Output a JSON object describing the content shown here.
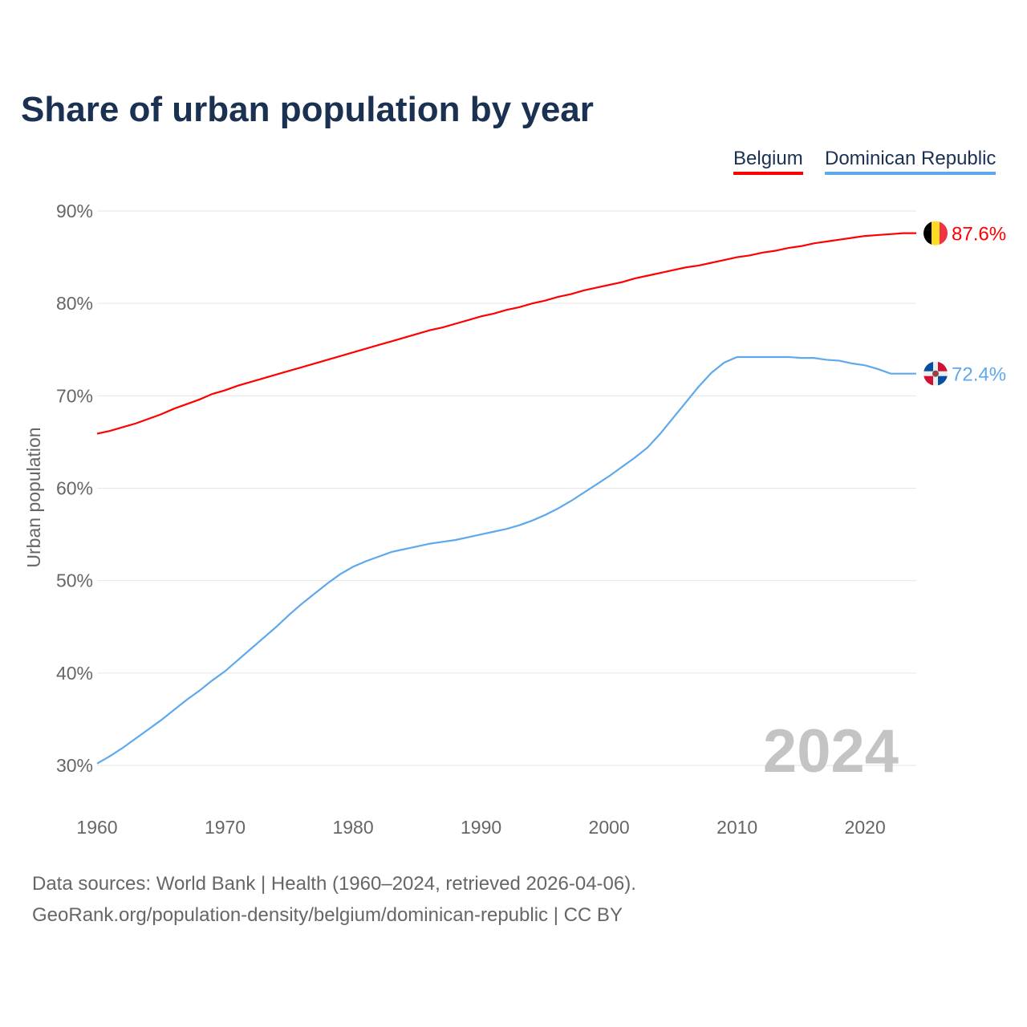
{
  "chart_data": {
    "type": "line",
    "title": "Share of urban population by year",
    "xlabel": "",
    "ylabel": "Urban population",
    "ylim": [
      30,
      90
    ],
    "xlim": [
      1960,
      2024
    ],
    "yticks": [
      "30%",
      "40%",
      "50%",
      "60%",
      "70%",
      "80%",
      "90%"
    ],
    "ytick_values": [
      30,
      40,
      50,
      60,
      70,
      80,
      90
    ],
    "xticks": [
      "1960",
      "1970",
      "1980",
      "1990",
      "2000",
      "2010",
      "2020"
    ],
    "grid": true,
    "legend_placement": "top-right",
    "year_watermark": "2024",
    "x": [
      1960,
      1961,
      1962,
      1963,
      1964,
      1965,
      1966,
      1967,
      1968,
      1969,
      1970,
      1971,
      1972,
      1973,
      1974,
      1975,
      1976,
      1977,
      1978,
      1979,
      1980,
      1981,
      1982,
      1983,
      1984,
      1985,
      1986,
      1987,
      1988,
      1989,
      1990,
      1991,
      1992,
      1993,
      1994,
      1995,
      1996,
      1997,
      1998,
      1999,
      2000,
      2001,
      2002,
      2003,
      2004,
      2005,
      2006,
      2007,
      2008,
      2009,
      2010,
      2011,
      2012,
      2013,
      2014,
      2015,
      2016,
      2017,
      2018,
      2019,
      2020,
      2021,
      2022,
      2023,
      2024
    ],
    "series": [
      {
        "name": "Belgium",
        "color": "#ff0000",
        "end_label": "87.6%",
        "values": [
          65.9,
          66.2,
          66.6,
          67.0,
          67.5,
          68.0,
          68.6,
          69.1,
          69.6,
          70.2,
          70.6,
          71.1,
          71.5,
          71.9,
          72.3,
          72.7,
          73.1,
          73.5,
          73.9,
          74.3,
          74.7,
          75.1,
          75.5,
          75.9,
          76.3,
          76.7,
          77.1,
          77.4,
          77.8,
          78.2,
          78.6,
          78.9,
          79.3,
          79.6,
          80.0,
          80.3,
          80.7,
          81.0,
          81.4,
          81.7,
          82.0,
          82.3,
          82.7,
          83.0,
          83.3,
          83.6,
          83.9,
          84.1,
          84.4,
          84.7,
          85.0,
          85.2,
          85.5,
          85.7,
          86.0,
          86.2,
          86.5,
          86.7,
          86.9,
          87.1,
          87.3,
          87.4,
          87.5,
          87.6,
          87.6
        ]
      },
      {
        "name": "Dominican Republic",
        "color": "#5ea8ec",
        "end_label": "72.4%",
        "values": [
          30.2,
          31.0,
          31.9,
          32.9,
          33.9,
          34.9,
          36.0,
          37.1,
          38.1,
          39.2,
          40.2,
          41.4,
          42.6,
          43.8,
          45.0,
          46.3,
          47.5,
          48.6,
          49.7,
          50.7,
          51.5,
          52.1,
          52.6,
          53.1,
          53.4,
          53.7,
          54.0,
          54.2,
          54.4,
          54.7,
          55.0,
          55.3,
          55.6,
          56.0,
          56.5,
          57.1,
          57.8,
          58.6,
          59.5,
          60.4,
          61.3,
          62.3,
          63.3,
          64.4,
          65.9,
          67.6,
          69.3,
          71.0,
          72.5,
          73.6,
          74.2,
          74.2,
          74.2,
          74.2,
          74.2,
          74.1,
          74.1,
          73.9,
          73.8,
          73.5,
          73.3,
          72.9,
          72.4,
          72.4,
          72.4
        ]
      }
    ]
  },
  "footer": {
    "line1": "Data sources: World Bank | Health (1960–2024, retrieved 2026-04-06).",
    "line2": "GeoRank.org/population-density/belgium/dominican-republic | CC BY"
  }
}
